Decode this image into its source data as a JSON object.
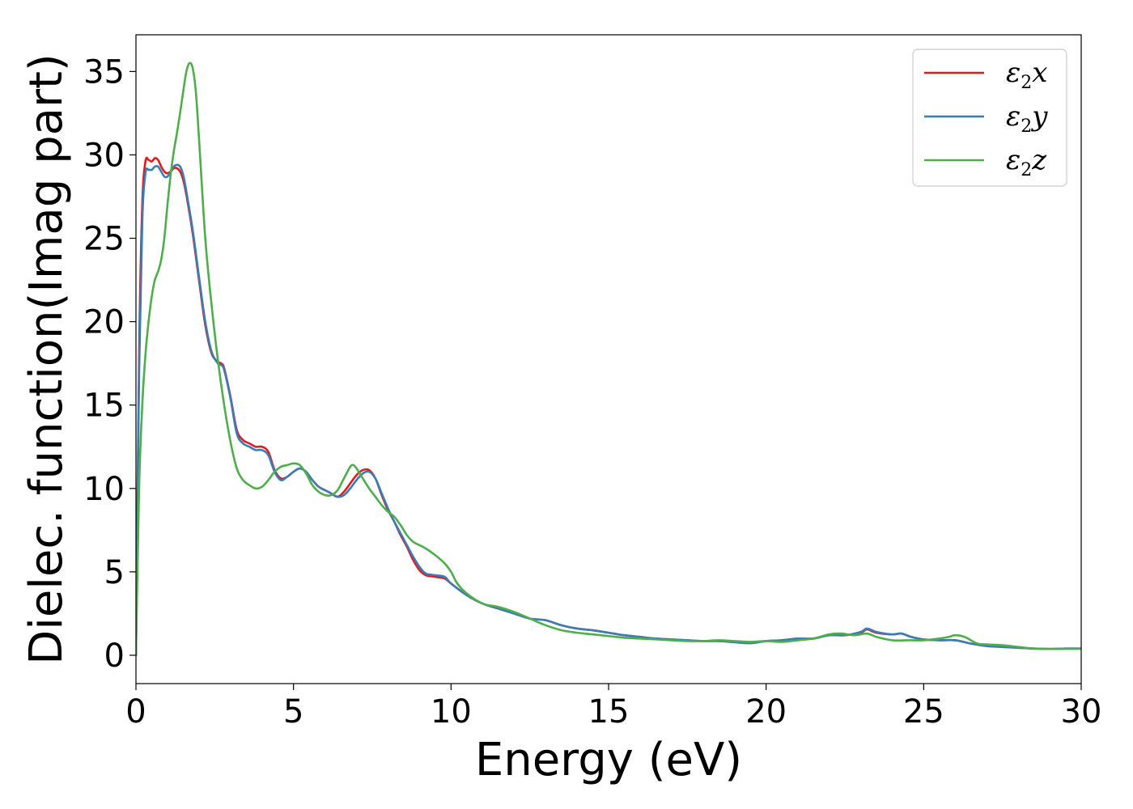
{
  "chart_data": {
    "type": "line",
    "xlabel": "Energy (eV)",
    "ylabel": "Dielec. function(Imag part)",
    "xlim": [
      0,
      30
    ],
    "ylim": [
      -1.7,
      37.2
    ],
    "xticks": [
      0,
      5,
      10,
      15,
      20,
      25,
      30
    ],
    "yticks": [
      0,
      5,
      10,
      15,
      20,
      25,
      30,
      35
    ],
    "grid": false,
    "legend_position": "top-right",
    "series": [
      {
        "name": "ε2x",
        "legend_base": "ε",
        "legend_sub": "2",
        "legend_tail": "x",
        "color": "#e41a1c",
        "points": [
          [
            0,
            0
          ],
          [
            0.1,
            18
          ],
          [
            0.2,
            27
          ],
          [
            0.3,
            29.6
          ],
          [
            0.4,
            29.7
          ],
          [
            0.5,
            29.6
          ],
          [
            0.6,
            29.8
          ],
          [
            0.7,
            29.7
          ],
          [
            0.8,
            29.3
          ],
          [
            0.9,
            29
          ],
          [
            1.0,
            28.9
          ],
          [
            1.1,
            29
          ],
          [
            1.2,
            29.2
          ],
          [
            1.3,
            29.2
          ],
          [
            1.4,
            29
          ],
          [
            1.5,
            28.5
          ],
          [
            1.6,
            27.6
          ],
          [
            1.8,
            25.3
          ],
          [
            2.0,
            22.5
          ],
          [
            2.2,
            19.8
          ],
          [
            2.4,
            18.1
          ],
          [
            2.6,
            17.6
          ],
          [
            2.7,
            17.5
          ],
          [
            2.8,
            17.2
          ],
          [
            3.0,
            15.5
          ],
          [
            3.2,
            13.5
          ],
          [
            3.4,
            12.9
          ],
          [
            3.6,
            12.7
          ],
          [
            3.8,
            12.5
          ],
          [
            4.0,
            12.5
          ],
          [
            4.2,
            12.2
          ],
          [
            4.4,
            11.1
          ],
          [
            4.6,
            10.6
          ],
          [
            4.8,
            10.7
          ],
          [
            5.0,
            11.0
          ],
          [
            5.2,
            11.2
          ],
          [
            5.4,
            11.0
          ],
          [
            5.6,
            10.5
          ],
          [
            5.8,
            10.1
          ],
          [
            6.0,
            9.9
          ],
          [
            6.2,
            9.7
          ],
          [
            6.4,
            9.5
          ],
          [
            6.6,
            9.8
          ],
          [
            6.8,
            10.3
          ],
          [
            7.0,
            10.8
          ],
          [
            7.2,
            11.1
          ],
          [
            7.4,
            11.1
          ],
          [
            7.6,
            10.6
          ],
          [
            7.8,
            9.6
          ],
          [
            8.0,
            8.7
          ],
          [
            8.2,
            8.0
          ],
          [
            8.4,
            7.2
          ],
          [
            8.6,
            6.5
          ],
          [
            8.8,
            5.7
          ],
          [
            9.0,
            5.1
          ],
          [
            9.2,
            4.8
          ],
          [
            9.5,
            4.7
          ],
          [
            9.8,
            4.6
          ],
          [
            10.0,
            4.3
          ],
          [
            10.5,
            3.6
          ],
          [
            11.0,
            3.1
          ],
          [
            11.5,
            2.8
          ],
          [
            12.0,
            2.5
          ],
          [
            12.5,
            2.2
          ],
          [
            13.0,
            2.1
          ],
          [
            13.5,
            1.8
          ],
          [
            14.0,
            1.6
          ],
          [
            14.5,
            1.5
          ],
          [
            15.0,
            1.35
          ],
          [
            15.5,
            1.2
          ],
          [
            16.0,
            1.1
          ],
          [
            16.5,
            1.0
          ],
          [
            17.0,
            0.95
          ],
          [
            17.5,
            0.9
          ],
          [
            18.0,
            0.85
          ],
          [
            18.5,
            0.85
          ],
          [
            19.0,
            0.8
          ],
          [
            19.5,
            0.75
          ],
          [
            20.0,
            0.85
          ],
          [
            20.5,
            0.9
          ],
          [
            21.0,
            1.0
          ],
          [
            21.5,
            1.0
          ],
          [
            22.0,
            1.2
          ],
          [
            22.5,
            1.2
          ],
          [
            23.0,
            1.35
          ],
          [
            23.2,
            1.55
          ],
          [
            23.5,
            1.35
          ],
          [
            24.0,
            1.25
          ],
          [
            24.3,
            1.3
          ],
          [
            24.6,
            1.1
          ],
          [
            25.0,
            0.95
          ],
          [
            25.5,
            0.9
          ],
          [
            26.0,
            0.9
          ],
          [
            26.5,
            0.7
          ],
          [
            27.0,
            0.55
          ],
          [
            27.5,
            0.5
          ],
          [
            28.0,
            0.45
          ],
          [
            28.5,
            0.4
          ],
          [
            29.0,
            0.38
          ],
          [
            29.5,
            0.4
          ],
          [
            30.0,
            0.4
          ]
        ]
      },
      {
        "name": "ε2y",
        "legend_base": "ε",
        "legend_sub": "2",
        "legend_tail": "y",
        "color": "#377eb8",
        "points": [
          [
            0,
            0
          ],
          [
            0.1,
            17
          ],
          [
            0.2,
            26
          ],
          [
            0.3,
            28.9
          ],
          [
            0.4,
            29.1
          ],
          [
            0.5,
            29.1
          ],
          [
            0.6,
            29.3
          ],
          [
            0.7,
            29.3
          ],
          [
            0.8,
            29.0
          ],
          [
            0.9,
            28.7
          ],
          [
            1.0,
            28.7
          ],
          [
            1.1,
            29.0
          ],
          [
            1.2,
            29.3
          ],
          [
            1.3,
            29.4
          ],
          [
            1.4,
            29.3
          ],
          [
            1.5,
            28.8
          ],
          [
            1.6,
            27.8
          ],
          [
            1.8,
            25.5
          ],
          [
            2.0,
            22.7
          ],
          [
            2.2,
            20.0
          ],
          [
            2.4,
            18.2
          ],
          [
            2.6,
            17.5
          ],
          [
            2.7,
            17.4
          ],
          [
            2.8,
            17.1
          ],
          [
            3.0,
            15.4
          ],
          [
            3.2,
            13.3
          ],
          [
            3.4,
            12.7
          ],
          [
            3.6,
            12.5
          ],
          [
            3.8,
            12.3
          ],
          [
            4.0,
            12.3
          ],
          [
            4.2,
            12.0
          ],
          [
            4.4,
            11.0
          ],
          [
            4.6,
            10.5
          ],
          [
            4.8,
            10.7
          ],
          [
            5.0,
            11.0
          ],
          [
            5.2,
            11.2
          ],
          [
            5.4,
            11.0
          ],
          [
            5.6,
            10.5
          ],
          [
            5.8,
            10.1
          ],
          [
            6.0,
            9.9
          ],
          [
            6.2,
            9.7
          ],
          [
            6.4,
            9.5
          ],
          [
            6.6,
            9.6
          ],
          [
            6.8,
            10.0
          ],
          [
            7.0,
            10.5
          ],
          [
            7.2,
            10.9
          ],
          [
            7.4,
            11.0
          ],
          [
            7.6,
            10.6
          ],
          [
            7.8,
            9.7
          ],
          [
            8.0,
            8.8
          ],
          [
            8.2,
            8.0
          ],
          [
            8.4,
            7.3
          ],
          [
            8.6,
            6.6
          ],
          [
            8.8,
            5.9
          ],
          [
            9.0,
            5.3
          ],
          [
            9.2,
            4.9
          ],
          [
            9.5,
            4.8
          ],
          [
            9.8,
            4.7
          ],
          [
            10.0,
            4.3
          ],
          [
            10.5,
            3.6
          ],
          [
            11.0,
            3.1
          ],
          [
            11.5,
            2.8
          ],
          [
            12.0,
            2.5
          ],
          [
            12.5,
            2.2
          ],
          [
            13.0,
            2.1
          ],
          [
            13.5,
            1.8
          ],
          [
            14.0,
            1.6
          ],
          [
            14.5,
            1.5
          ],
          [
            15.0,
            1.35
          ],
          [
            15.5,
            1.2
          ],
          [
            16.0,
            1.1
          ],
          [
            16.5,
            1.0
          ],
          [
            17.0,
            0.95
          ],
          [
            17.5,
            0.9
          ],
          [
            18.0,
            0.85
          ],
          [
            18.5,
            0.85
          ],
          [
            19.0,
            0.78
          ],
          [
            19.5,
            0.72
          ],
          [
            20.0,
            0.85
          ],
          [
            20.5,
            0.9
          ],
          [
            21.0,
            1.0
          ],
          [
            21.5,
            1.0
          ],
          [
            22.0,
            1.2
          ],
          [
            22.5,
            1.2
          ],
          [
            23.0,
            1.4
          ],
          [
            23.2,
            1.6
          ],
          [
            23.5,
            1.4
          ],
          [
            24.0,
            1.25
          ],
          [
            24.3,
            1.3
          ],
          [
            24.6,
            1.1
          ],
          [
            25.0,
            0.95
          ],
          [
            25.5,
            0.9
          ],
          [
            26.0,
            0.9
          ],
          [
            26.5,
            0.7
          ],
          [
            27.0,
            0.55
          ],
          [
            27.5,
            0.5
          ],
          [
            28.0,
            0.45
          ],
          [
            28.5,
            0.4
          ],
          [
            29.0,
            0.38
          ],
          [
            29.5,
            0.4
          ],
          [
            30.0,
            0.4
          ]
        ]
      },
      {
        "name": "ε2z",
        "legend_base": "ε",
        "legend_sub": "2",
        "legend_tail": "z",
        "color": "#4daf4a",
        "points": [
          [
            0,
            0
          ],
          [
            0.1,
            10
          ],
          [
            0.2,
            15
          ],
          [
            0.3,
            18
          ],
          [
            0.4,
            20
          ],
          [
            0.5,
            21.5
          ],
          [
            0.6,
            22.5
          ],
          [
            0.7,
            23.0
          ],
          [
            0.8,
            23.7
          ],
          [
            0.9,
            25.0
          ],
          [
            1.0,
            27.0
          ],
          [
            1.1,
            28.8
          ],
          [
            1.2,
            30.2
          ],
          [
            1.3,
            31.3
          ],
          [
            1.4,
            32.5
          ],
          [
            1.5,
            33.8
          ],
          [
            1.6,
            35.0
          ],
          [
            1.7,
            35.5
          ],
          [
            1.8,
            35.2
          ],
          [
            1.9,
            33.8
          ],
          [
            2.0,
            31.0
          ],
          [
            2.2,
            25.0
          ],
          [
            2.4,
            21.0
          ],
          [
            2.6,
            17.7
          ],
          [
            2.8,
            15.0
          ],
          [
            3.0,
            12.8
          ],
          [
            3.2,
            11.2
          ],
          [
            3.4,
            10.5
          ],
          [
            3.6,
            10.2
          ],
          [
            3.8,
            10.0
          ],
          [
            4.0,
            10.1
          ],
          [
            4.2,
            10.5
          ],
          [
            4.4,
            11.0
          ],
          [
            4.6,
            11.3
          ],
          [
            4.8,
            11.4
          ],
          [
            5.0,
            11.5
          ],
          [
            5.2,
            11.4
          ],
          [
            5.4,
            10.9
          ],
          [
            5.6,
            10.2
          ],
          [
            5.8,
            9.8
          ],
          [
            6.0,
            9.6
          ],
          [
            6.2,
            9.6
          ],
          [
            6.4,
            9.9
          ],
          [
            6.6,
            10.6
          ],
          [
            6.8,
            11.3
          ],
          [
            6.9,
            11.4
          ],
          [
            7.0,
            11.2
          ],
          [
            7.2,
            10.6
          ],
          [
            7.4,
            10.0
          ],
          [
            7.6,
            9.5
          ],
          [
            7.8,
            9.0
          ],
          [
            8.0,
            8.6
          ],
          [
            8.2,
            8.3
          ],
          [
            8.4,
            7.8
          ],
          [
            8.6,
            7.2
          ],
          [
            8.8,
            6.8
          ],
          [
            9.0,
            6.6
          ],
          [
            9.2,
            6.4
          ],
          [
            9.5,
            6.0
          ],
          [
            9.8,
            5.5
          ],
          [
            10.0,
            5.0
          ],
          [
            10.2,
            4.3
          ],
          [
            10.5,
            3.7
          ],
          [
            11.0,
            3.1
          ],
          [
            11.5,
            2.9
          ],
          [
            12.0,
            2.6
          ],
          [
            12.5,
            2.2
          ],
          [
            13.0,
            1.8
          ],
          [
            13.5,
            1.5
          ],
          [
            14.0,
            1.35
          ],
          [
            14.5,
            1.25
          ],
          [
            15.0,
            1.15
          ],
          [
            15.5,
            1.05
          ],
          [
            16.0,
            1.0
          ],
          [
            16.5,
            0.95
          ],
          [
            17.0,
            0.9
          ],
          [
            17.5,
            0.85
          ],
          [
            18.0,
            0.85
          ],
          [
            18.5,
            0.9
          ],
          [
            19.0,
            0.85
          ],
          [
            19.5,
            0.8
          ],
          [
            20.0,
            0.85
          ],
          [
            20.5,
            0.8
          ],
          [
            21.0,
            0.9
          ],
          [
            21.5,
            1.0
          ],
          [
            22.0,
            1.25
          ],
          [
            22.4,
            1.3
          ],
          [
            22.8,
            1.2
          ],
          [
            23.2,
            1.3
          ],
          [
            23.5,
            1.1
          ],
          [
            24.0,
            0.9
          ],
          [
            24.5,
            0.9
          ],
          [
            25.0,
            0.9
          ],
          [
            25.5,
            1.0
          ],
          [
            25.8,
            1.1
          ],
          [
            26.0,
            1.2
          ],
          [
            26.3,
            1.1
          ],
          [
            26.7,
            0.7
          ],
          [
            27.0,
            0.65
          ],
          [
            27.5,
            0.6
          ],
          [
            28.0,
            0.5
          ],
          [
            28.5,
            0.4
          ],
          [
            29.0,
            0.38
          ],
          [
            29.5,
            0.38
          ],
          [
            30.0,
            0.38
          ]
        ]
      }
    ]
  }
}
